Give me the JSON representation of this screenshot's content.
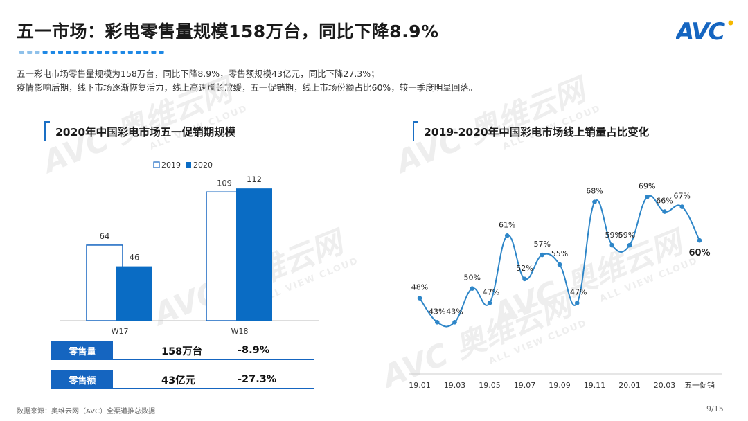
{
  "header": {
    "title": "五一市场：彩电零售量规模158万台，同比下降8.9%",
    "logo_text": "AVC"
  },
  "description": {
    "line1": "五一彩电市场零售量规模为158万台，同比下降8.9%，零售额规模43亿元，同比下降27.3%；",
    "line2": "疫情影响后期，线下市场逐渐恢复活力，线上高速增长放缓，五一促销期，线上市场份额占比60%，较一季度明显回落。"
  },
  "watermark": {
    "main": "AVC 奥维云网",
    "sub": "ALL VIEW CLOUD"
  },
  "left_panel": {
    "title": "2020年中国彩电市场五一促销期规模"
  },
  "right_panel": {
    "title": "2019-2020年中国彩电市场线上销量占比变化"
  },
  "summary": [
    {
      "label": "零售量",
      "value": "158万台",
      "change": "-8.9%"
    },
    {
      "label": "零售额",
      "value": "43亿元",
      "change": "-27.3%"
    }
  ],
  "footer": {
    "source": "数据来源：奥维云网（AVC）全渠道推总数据",
    "page": "9/15"
  },
  "colors": {
    "accent": "#1565c0",
    "bar2019_fill": "#ffffff",
    "bar2019_stroke": "#1565c0",
    "bar2020": "#0a6cc4",
    "line": "#2e86c8"
  },
  "chart_data": [
    {
      "type": "bar",
      "categories": [
        "W17",
        "W18"
      ],
      "series": [
        {
          "name": "2019",
          "values": [
            64,
            109
          ]
        },
        {
          "name": "2020",
          "values": [
            46,
            112
          ]
        }
      ],
      "legend": "top-center",
      "ylim": [
        0,
        125
      ]
    },
    {
      "type": "line",
      "x": [
        "19.01",
        "19.02",
        "19.03",
        "19.04",
        "19.05",
        "19.06",
        "19.07",
        "19.08",
        "19.09",
        "19.10",
        "19.11",
        "19.12",
        "20.01",
        "20.02",
        "20.03",
        "20.04",
        "五一促销"
      ],
      "x_tick_labels": [
        "19.01",
        "19.03",
        "19.05",
        "19.07",
        "19.09",
        "19.11",
        "20.01",
        "20.03",
        "五一促销"
      ],
      "values": [
        48,
        43,
        43,
        50,
        47,
        61,
        52,
        57,
        55,
        47,
        68,
        59,
        59,
        69,
        66,
        67,
        60
      ],
      "data_labels": [
        "48%",
        "43%",
        "43%",
        "50%",
        "47%",
        "61%",
        "52%",
        "57%",
        "55%",
        "47%",
        "68%",
        "59%",
        "59%",
        "69%",
        "66%",
        "67%",
        "60%"
      ],
      "ylim": [
        38,
        74
      ],
      "grid": false
    }
  ]
}
